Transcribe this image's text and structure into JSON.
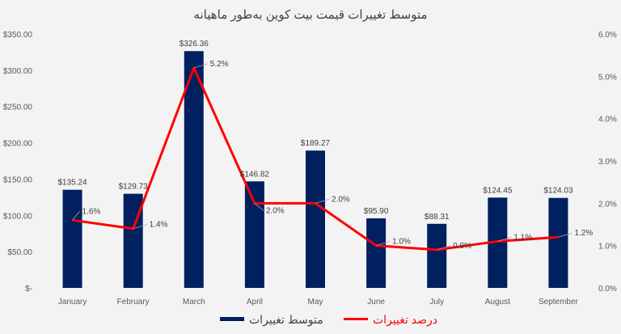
{
  "chart_data": {
    "type": "bar+line",
    "title": "متوسط تغییرات قیمت بیت کوین به‌طور ماهیانه",
    "categories": [
      "January",
      "February",
      "March",
      "April",
      "May",
      "June",
      "July",
      "August",
      "September"
    ],
    "series": [
      {
        "name": "متوسط تغییرات",
        "type": "bar",
        "axis": "left",
        "color": "#002060",
        "values": [
          135.24,
          129.73,
          326.36,
          146.82,
          189.27,
          95.9,
          88.31,
          124.45,
          124.03
        ],
        "labels": [
          "$135.24",
          "$129.73",
          "$326.36",
          "$146.82",
          "$189.27",
          "$95.90",
          "$88.31",
          "$124.45",
          "$124.03"
        ]
      },
      {
        "name": "درصد تغییرات",
        "type": "line",
        "axis": "right",
        "color": "#ff0000",
        "values": [
          1.6,
          1.4,
          5.2,
          2.0,
          2.0,
          1.0,
          0.9,
          1.1,
          1.2
        ],
        "labels": [
          "1.6%",
          "1.4%",
          "5.2%",
          "2.0%",
          "2.0%",
          "1.0%",
          "0.9%",
          "1.1%",
          "1.2%"
        ]
      }
    ],
    "y_left": {
      "ylim": [
        0,
        350
      ],
      "ticks": [
        "$-",
        "$50.00",
        "$100.00",
        "$150.00",
        "$200.00",
        "$250.00",
        "$300.00",
        "$350.00"
      ]
    },
    "y_right": {
      "ylim": [
        0,
        6
      ],
      "ticks": [
        "0.0%",
        "1.0%",
        "2.0%",
        "3.0%",
        "4.0%",
        "5.0%",
        "6.0%"
      ]
    },
    "grid": false,
    "legend": "bottom"
  }
}
